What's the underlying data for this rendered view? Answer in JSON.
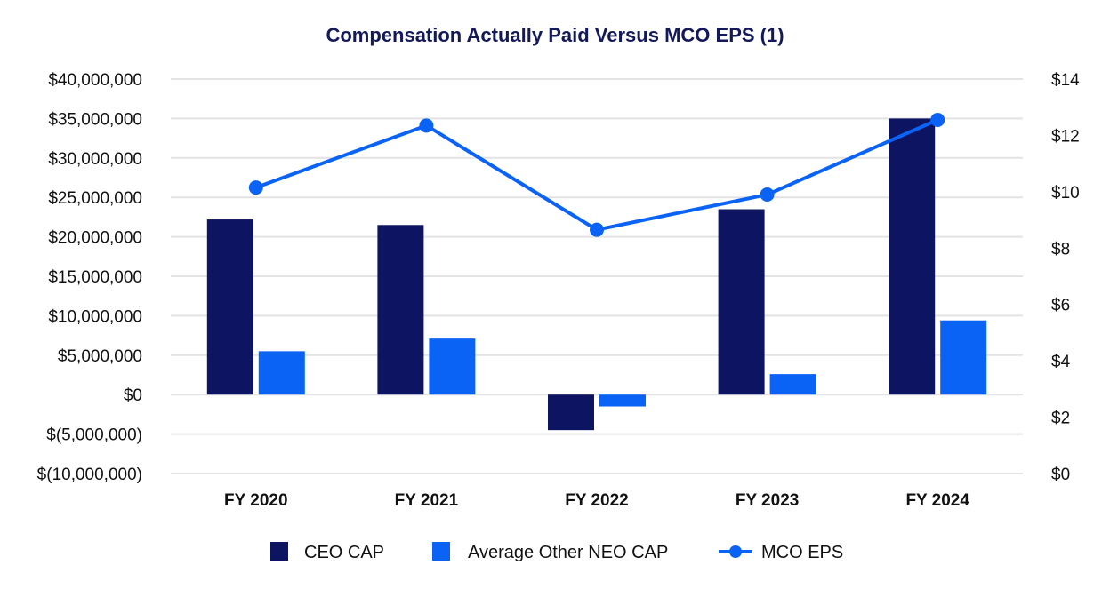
{
  "chart_data": {
    "type": "bar",
    "title": "Compensation Actually Paid Versus MCO EPS (1)",
    "categories": [
      "FY 2020",
      "FY 2021",
      "FY 2022",
      "FY 2023",
      "FY 2024"
    ],
    "series": [
      {
        "name": "CEO CAP",
        "kind": "bar",
        "axis": "left",
        "color": "#0d1461",
        "values": [
          22200000,
          21500000,
          -4500000,
          23500000,
          35000000
        ]
      },
      {
        "name": "Average Other NEO CAP",
        "kind": "bar",
        "axis": "left",
        "color": "#0b63f6",
        "values": [
          5500000,
          7100000,
          -1500000,
          2600000,
          9400000
        ]
      },
      {
        "name": "MCO EPS",
        "kind": "line",
        "axis": "right",
        "color": "#0b63f6",
        "values": [
          10.15,
          12.35,
          8.65,
          9.9,
          12.55
        ]
      }
    ],
    "left_axis": {
      "ylim": [
        -10000000,
        40000000
      ],
      "ticks": [
        40000000,
        35000000,
        30000000,
        25000000,
        20000000,
        15000000,
        10000000,
        5000000,
        0,
        -5000000,
        -10000000
      ],
      "tick_labels": [
        "$40,000,000",
        "$35,000,000",
        "$30,000,000",
        "$25,000,000",
        "$20,000,000",
        "$15,000,000",
        "$10,000,000",
        "$5,000,000",
        "$0",
        "$(5,000,000)",
        "$(10,000,000)"
      ]
    },
    "right_axis": {
      "ylim": [
        0,
        14
      ],
      "ticks": [
        14,
        12,
        10,
        8,
        6,
        4,
        2,
        0
      ],
      "tick_labels": [
        "$14",
        "$12",
        "$10",
        "$8",
        "$6",
        "$4",
        "$2",
        "$0"
      ]
    },
    "grid": true,
    "legend": [
      "CEO CAP",
      "Average Other NEO CAP",
      "MCO EPS"
    ],
    "legend_position": "bottom"
  }
}
